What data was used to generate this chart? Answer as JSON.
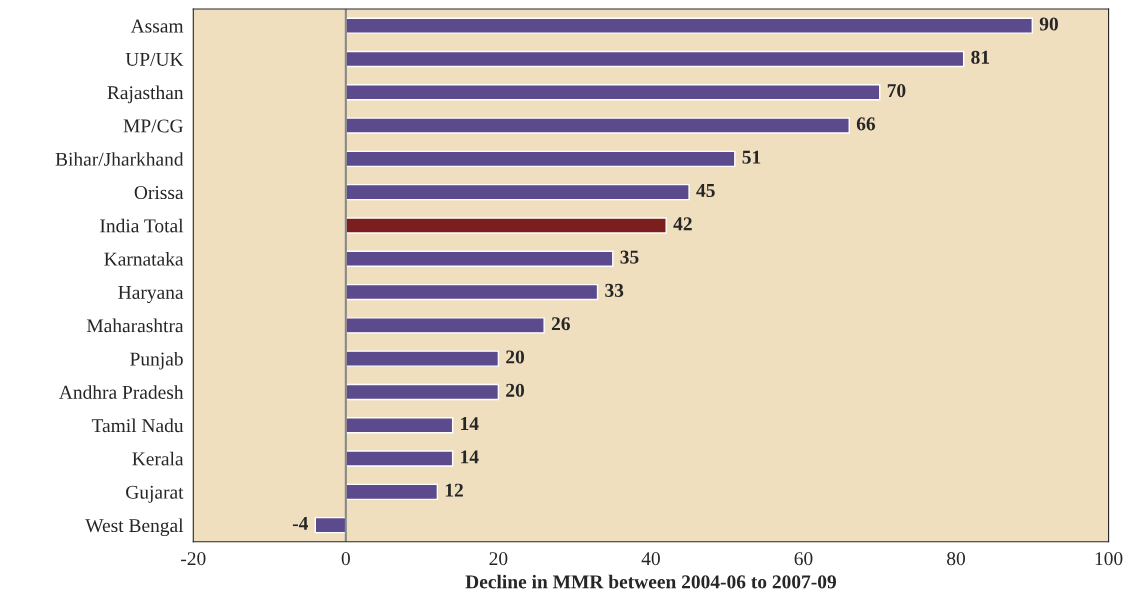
{
  "chart_data": {
    "type": "bar",
    "orientation": "horizontal",
    "xlabel": "Decline in MMR between 2004-06 to 2007-09",
    "categories": [
      "Assam",
      "UP/UK",
      "Rajasthan",
      "MP/CG",
      "Bihar/Jharkhand",
      "Orissa",
      "India Total",
      "Karnataka",
      "Haryana",
      "Maharashtra",
      "Punjab",
      "Andhra Pradesh",
      "Tamil Nadu",
      "Kerala",
      "Gujarat",
      "West Bengal"
    ],
    "values": [
      90,
      81,
      70,
      66,
      51,
      45,
      42,
      35,
      33,
      26,
      20,
      20,
      14,
      14,
      12,
      -4
    ],
    "colors": [
      "#5b4a8c",
      "#5b4a8c",
      "#5b4a8c",
      "#5b4a8c",
      "#5b4a8c",
      "#5b4a8c",
      "#7a1e1e",
      "#5b4a8c",
      "#5b4a8c",
      "#5b4a8c",
      "#5b4a8c",
      "#5b4a8c",
      "#5b4a8c",
      "#5b4a8c",
      "#5b4a8c",
      "#5b4a8c"
    ],
    "xlim": [
      -20,
      100
    ],
    "xticks": [
      -20,
      0,
      20,
      40,
      60,
      80,
      100
    ],
    "ref_lines": [
      {
        "axis": "x",
        "value": 0,
        "color": "#888888"
      }
    ],
    "data_labels": true,
    "grid": false,
    "legend": false
  }
}
